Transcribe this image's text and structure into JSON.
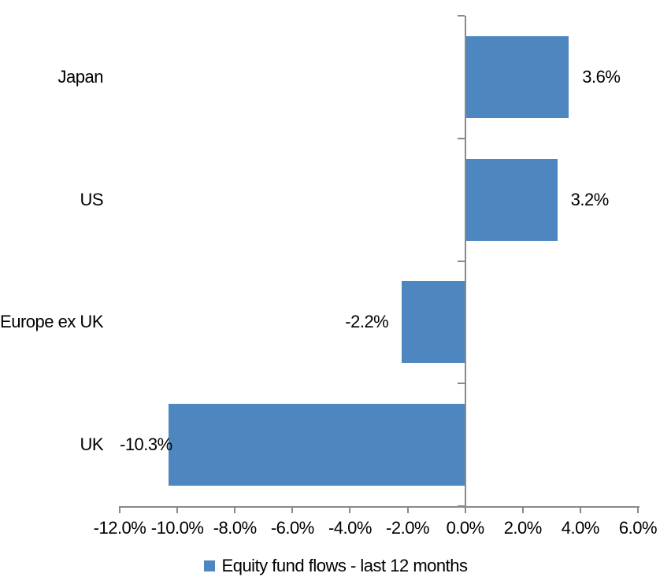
{
  "colors": {
    "bar": "#4e87bf",
    "axis": "#898989",
    "text": "#000000",
    "background": "#ffffff"
  },
  "legend": {
    "label": "Equity fund flows - last 12 months"
  },
  "chart_data": {
    "type": "bar",
    "orientation": "horizontal",
    "title": "",
    "xlabel": "",
    "ylabel": "",
    "categories": [
      "Japan",
      "US",
      "Europe ex UK",
      "UK"
    ],
    "series": [
      {
        "name": "Equity fund flows - last 12 months",
        "values": [
          3.6,
          3.2,
          -2.2,
          -10.3
        ],
        "value_labels": [
          "3.6%",
          "3.2%",
          "-2.2%",
          "-10.3%"
        ]
      }
    ],
    "xlim": [
      -12,
      6
    ],
    "x_tick_values": [
      -12,
      -10,
      -8,
      -6,
      -4,
      -2,
      0,
      2,
      4,
      6
    ],
    "x_tick_labels": [
      "-12.0%",
      "-10.0%",
      "-8.0%",
      "-6.0%",
      "-4.0%",
      "-2.0%",
      "0.0%",
      "2.0%",
      "4.0%",
      "6.0%"
    ],
    "grid": false,
    "legend_position": "bottom-center",
    "data_label_position": "outside-end"
  }
}
